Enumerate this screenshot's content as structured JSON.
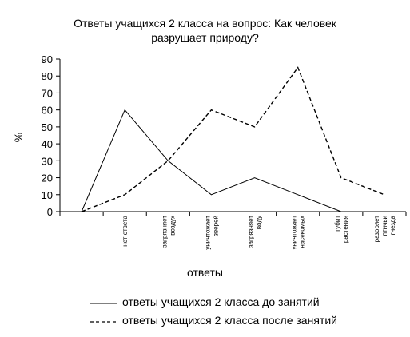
{
  "chart_data": {
    "type": "line",
    "title_line1": "Ответы учащихся 2 класса на вопрос: Как человек",
    "title_line2": "разрушает природу?",
    "xlabel": "ответы",
    "ylabel": "%",
    "ylim": [
      0,
      90
    ],
    "yticks": [
      0,
      10,
      20,
      30,
      40,
      50,
      60,
      70,
      80,
      90
    ],
    "grid": false,
    "legend_position": "bottom",
    "categories": [
      "",
      "нет ответа",
      "загрязняет воздух",
      "уничтожает зверей",
      "загрязняет воду",
      "уничтожает насекомых",
      "губит растения",
      "разоряет птичьи гнезда"
    ],
    "tick_label_lines": [
      [],
      [
        "нет ответа"
      ],
      [
        "загрязняет",
        "воздух"
      ],
      [
        "уничтожает",
        "зверей"
      ],
      [
        "загрязняет",
        "воду"
      ],
      [
        "уничтожает",
        "насекомых"
      ],
      [
        "губит",
        "растения"
      ],
      [
        "разоряет",
        "птичьи",
        "гнезда"
      ]
    ],
    "series": [
      {
        "name": "ответы учащихся 2 класса до занятий",
        "style": "solid",
        "values": [
          0,
          60,
          30,
          10,
          20,
          10,
          0,
          null
        ]
      },
      {
        "name": "ответы учащихся 2 класса после занятий",
        "style": "dashed",
        "values": [
          0,
          10,
          30,
          60,
          50,
          85,
          20,
          10
        ]
      }
    ]
  }
}
